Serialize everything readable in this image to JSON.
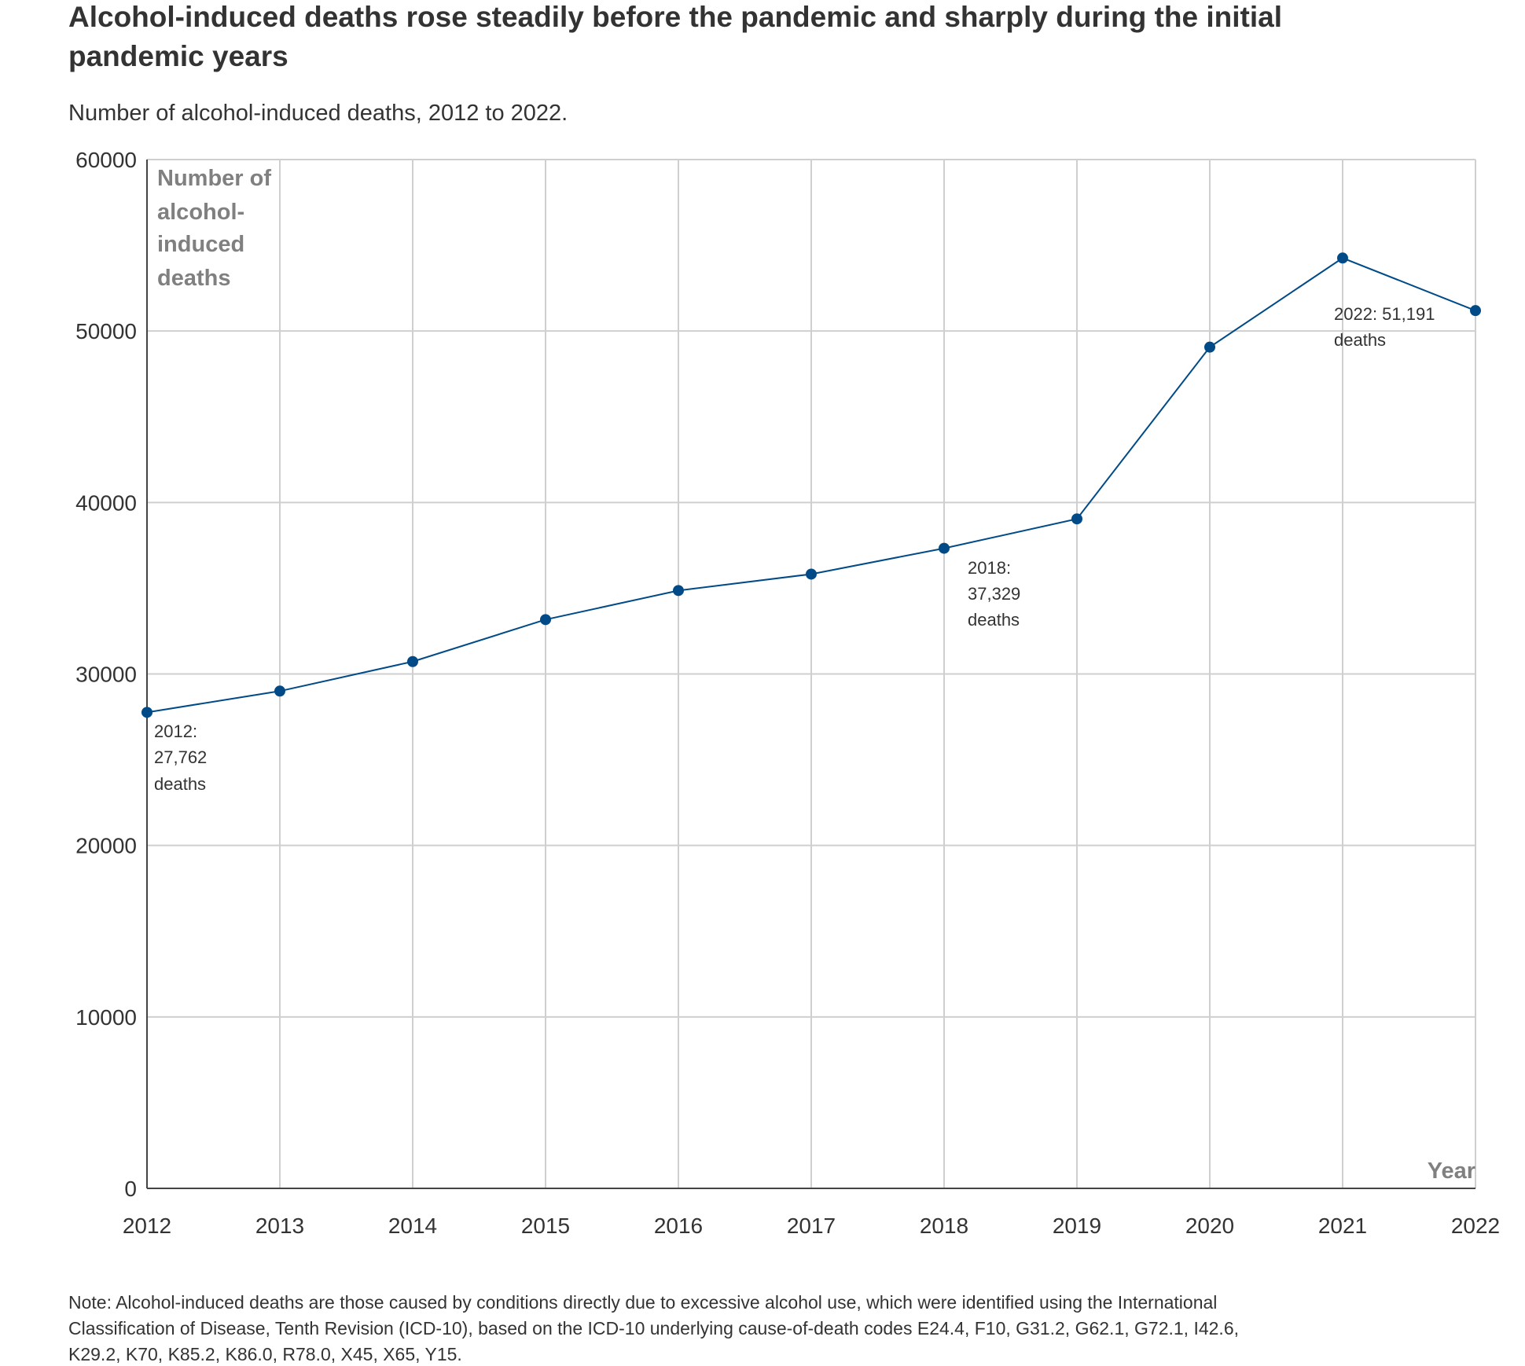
{
  "title_lines": [
    "Alcohol-induced deaths rose steadily before the pandemic and sharply during the initial",
    "pandemic years"
  ],
  "subtitle": "Number of alcohol-induced deaths, 2012 to 2022.",
  "chart_data": {
    "type": "line",
    "title": "Alcohol-induced deaths rose steadily before the pandemic and sharply during the initial pandemic years",
    "x": [
      2012,
      2013,
      2014,
      2015,
      2016,
      2017,
      2018,
      2019,
      2020,
      2021,
      2022
    ],
    "series": [
      {
        "name": "Alcohol-induced deaths",
        "values": [
          27762,
          29001,
          30722,
          33171,
          34865,
          35823,
          37329,
          39043,
          49061,
          54258,
          51191
        ],
        "color": "#004b87"
      }
    ],
    "xlabel": "Year",
    "ylabel_lines": [
      "Number of",
      "alcohol-",
      "induced",
      "deaths"
    ],
    "ylim": [
      0,
      60000
    ],
    "xlim": [
      2012,
      2022
    ],
    "yticks": [
      "0",
      "10000",
      "20000",
      "30000",
      "40000",
      "50000",
      "60000"
    ],
    "xticks": [
      "2012",
      "2013",
      "2014",
      "2015",
      "2016",
      "2017",
      "2018",
      "2019",
      "2020",
      "2021",
      "2022"
    ],
    "grid": true,
    "annotations": [
      {
        "year": 2012,
        "lines": [
          "2012:",
          "27,762",
          "deaths"
        ]
      },
      {
        "year": 2018,
        "lines": [
          "2018:",
          "37,329",
          "deaths"
        ]
      },
      {
        "year": 2022,
        "lines": [
          "2022: 51,191",
          "deaths"
        ]
      }
    ]
  },
  "note_lines": [
    "Note: Alcohol-induced deaths are those caused by conditions directly due to excessive alcohol use, which were identified using the International",
    "Classification of Disease, Tenth Revision (ICD-10), based on the ICD-10 underlying cause-of-death codes E24.4, F10, G31.2, G62.1, G72.1, I42.6,",
    "K29.2, K70, K85.2, K86.0, R78.0, X45, X65, Y15."
  ]
}
